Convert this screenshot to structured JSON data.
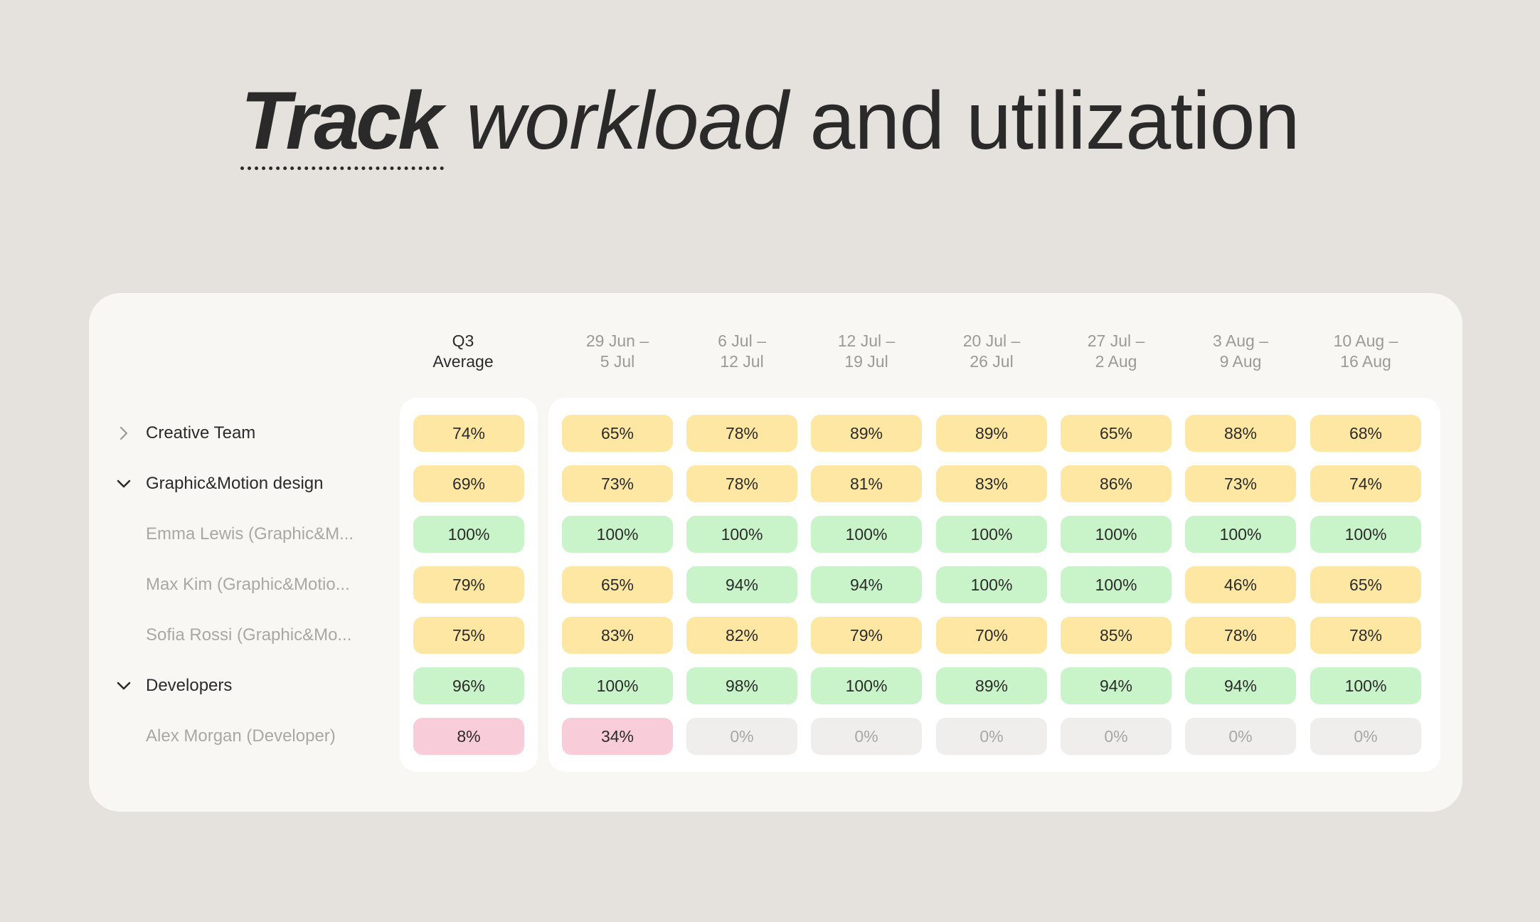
{
  "headline": {
    "word1": "Track",
    "word2": "workload",
    "word3": "and utilization"
  },
  "table": {
    "columns": [
      {
        "line1": "Q3",
        "line2": "Average"
      },
      {
        "line1": "29 Jun –",
        "line2": "5 Jul"
      },
      {
        "line1": "6 Jul –",
        "line2": "12 Jul"
      },
      {
        "line1": "12 Jul –",
        "line2": "19 Jul"
      },
      {
        "line1": "20 Jul –",
        "line2": "26 Jul"
      },
      {
        "line1": "27 Jul –",
        "line2": "2 Aug"
      },
      {
        "line1": "3 Aug –",
        "line2": "9 Aug"
      },
      {
        "line1": "10 Aug –",
        "line2": "16 Aug"
      }
    ],
    "rows": [
      {
        "label": "Creative Team",
        "type": "group",
        "chevron": "chevron-right-icon",
        "cells": [
          {
            "value": "74%",
            "status": "yellow"
          },
          {
            "value": "65%",
            "status": "yellow"
          },
          {
            "value": "78%",
            "status": "yellow"
          },
          {
            "value": "89%",
            "status": "yellow"
          },
          {
            "value": "89%",
            "status": "yellow"
          },
          {
            "value": "65%",
            "status": "yellow"
          },
          {
            "value": "88%",
            "status": "yellow"
          },
          {
            "value": "68%",
            "status": "yellow"
          }
        ]
      },
      {
        "label": "Graphic&Motion design",
        "type": "group",
        "chevron": "chevron-down-icon",
        "cells": [
          {
            "value": "69%",
            "status": "yellow"
          },
          {
            "value": "73%",
            "status": "yellow"
          },
          {
            "value": "78%",
            "status": "yellow"
          },
          {
            "value": "81%",
            "status": "yellow"
          },
          {
            "value": "83%",
            "status": "yellow"
          },
          {
            "value": "86%",
            "status": "yellow"
          },
          {
            "value": "73%",
            "status": "yellow"
          },
          {
            "value": "74%",
            "status": "yellow"
          }
        ]
      },
      {
        "label": "Emma Lewis (Graphic&M...",
        "type": "member",
        "cells": [
          {
            "value": "100%",
            "status": "green"
          },
          {
            "value": "100%",
            "status": "green"
          },
          {
            "value": "100%",
            "status": "green"
          },
          {
            "value": "100%",
            "status": "green"
          },
          {
            "value": "100%",
            "status": "green"
          },
          {
            "value": "100%",
            "status": "green"
          },
          {
            "value": "100%",
            "status": "green"
          },
          {
            "value": "100%",
            "status": "green"
          }
        ]
      },
      {
        "label": "Max Kim (Graphic&Motio...",
        "type": "member",
        "cells": [
          {
            "value": "79%",
            "status": "yellow"
          },
          {
            "value": "65%",
            "status": "yellow"
          },
          {
            "value": "94%",
            "status": "green"
          },
          {
            "value": "94%",
            "status": "green"
          },
          {
            "value": "100%",
            "status": "green"
          },
          {
            "value": "100%",
            "status": "green"
          },
          {
            "value": "46%",
            "status": "yellow"
          },
          {
            "value": "65%",
            "status": "yellow"
          }
        ]
      },
      {
        "label": "Sofia Rossi (Graphic&Mo...",
        "type": "member",
        "cells": [
          {
            "value": "75%",
            "status": "yellow"
          },
          {
            "value": "83%",
            "status": "yellow"
          },
          {
            "value": "82%",
            "status": "yellow"
          },
          {
            "value": "79%",
            "status": "yellow"
          },
          {
            "value": "70%",
            "status": "yellow"
          },
          {
            "value": "85%",
            "status": "yellow"
          },
          {
            "value": "78%",
            "status": "yellow"
          },
          {
            "value": "78%",
            "status": "yellow"
          }
        ]
      },
      {
        "label": "Developers",
        "type": "group",
        "chevron": "chevron-down-icon",
        "cells": [
          {
            "value": "96%",
            "status": "green"
          },
          {
            "value": "100%",
            "status": "green"
          },
          {
            "value": "98%",
            "status": "green"
          },
          {
            "value": "100%",
            "status": "green"
          },
          {
            "value": "89%",
            "status": "green"
          },
          {
            "value": "94%",
            "status": "green"
          },
          {
            "value": "94%",
            "status": "green"
          },
          {
            "value": "100%",
            "status": "green"
          }
        ]
      },
      {
        "label": "Alex Morgan (Developer)",
        "type": "member",
        "cells": [
          {
            "value": "8%",
            "status": "pink"
          },
          {
            "value": "34%",
            "status": "pink"
          },
          {
            "value": "0%",
            "status": "grey"
          },
          {
            "value": "0%",
            "status": "grey"
          },
          {
            "value": "0%",
            "status": "grey"
          },
          {
            "value": "0%",
            "status": "grey"
          },
          {
            "value": "0%",
            "status": "grey"
          },
          {
            "value": "0%",
            "status": "grey"
          }
        ]
      }
    ]
  },
  "colors": {
    "background": "#e5e1dc",
    "card": "#f8f7f4",
    "yellow": "#fde7a2",
    "green": "#c9f3c8",
    "pink": "#f8ccd9",
    "grey": "#efeeec"
  }
}
